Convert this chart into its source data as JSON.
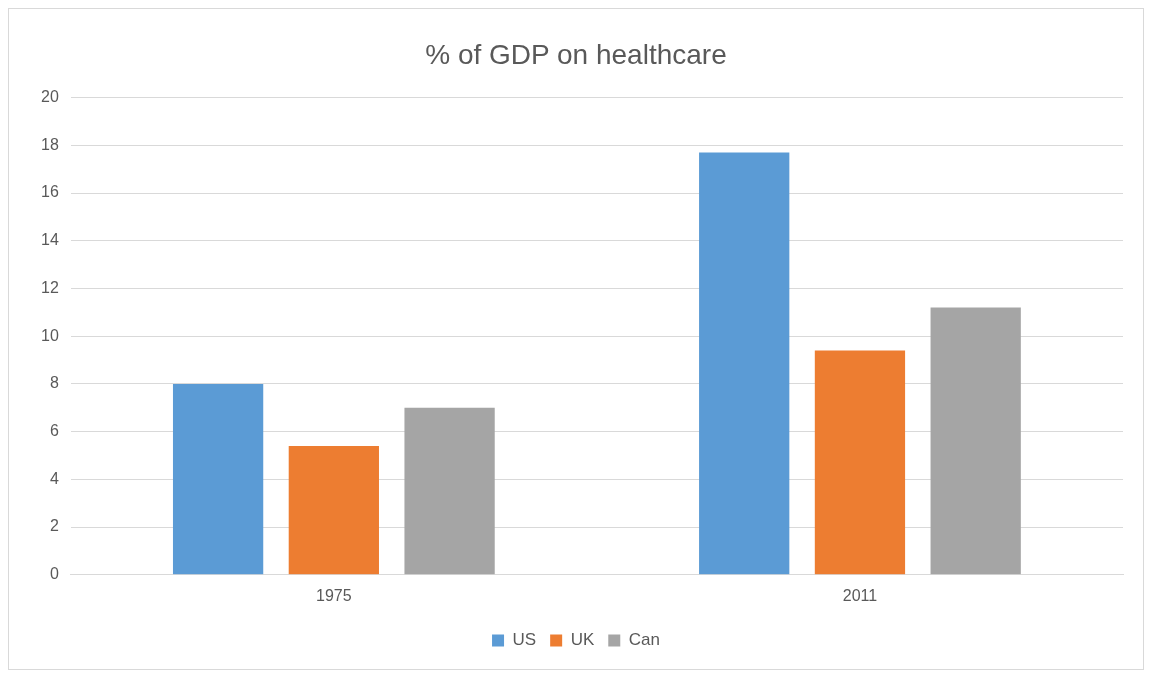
{
  "chart_data": {
    "type": "bar",
    "title": "% of GDP on healthcare",
    "categories": [
      "1975",
      "2011"
    ],
    "series": [
      {
        "name": "US",
        "color": "#5b9bd5",
        "values": [
          8.0,
          17.7
        ]
      },
      {
        "name": "UK",
        "color": "#ed7d31",
        "values": [
          5.4,
          9.4
        ]
      },
      {
        "name": "Can",
        "color": "#a5a5a5",
        "values": [
          7.0,
          11.2
        ]
      }
    ],
    "ylim": [
      0,
      20
    ],
    "yticks": [
      0,
      2,
      4,
      6,
      8,
      10,
      12,
      14,
      16,
      18,
      20
    ],
    "grid": "y",
    "legend": "bottom"
  }
}
